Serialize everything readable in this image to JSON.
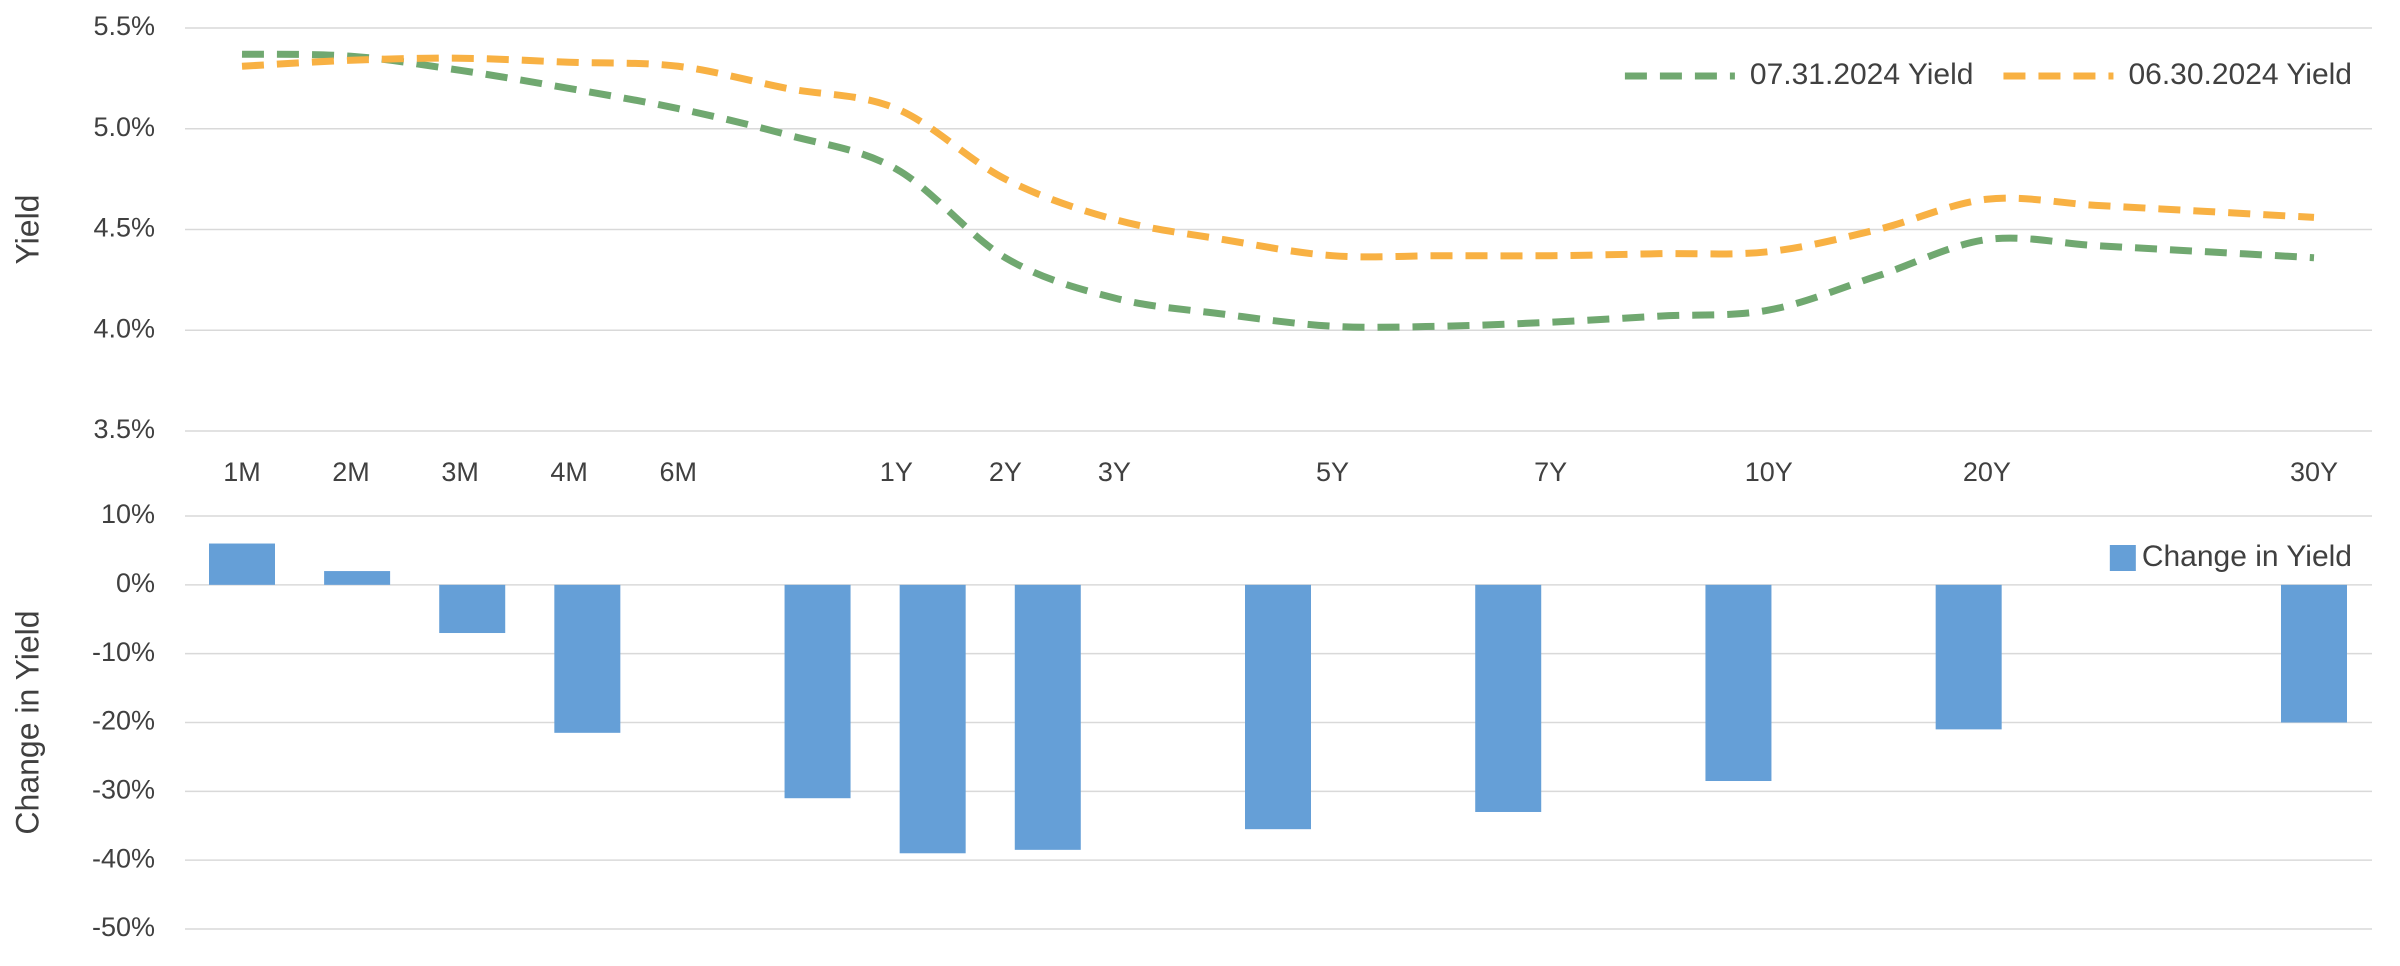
{
  "chart_data": [
    {
      "type": "line",
      "y_label": "Yield",
      "categories": [
        "1M",
        "2M",
        "3M",
        "4M",
        "6M",
        null,
        "1Y",
        "2Y",
        "3Y",
        null,
        "5Y",
        null,
        "7Y",
        null,
        "10Y",
        null,
        "20Y",
        null,
        null,
        "30Y"
      ],
      "series": [
        {
          "name": "07.31.2024 Yield",
          "color": "#70a870",
          "values": [
            5.37,
            5.36,
            5.29,
            5.2,
            5.1,
            4.97,
            4.8,
            4.36,
            4.16,
            4.08,
            4.02,
            4.02,
            4.04,
            4.07,
            4.1,
            4.27,
            4.45,
            4.42,
            4.39,
            4.36
          ]
        },
        {
          "name": "06.30.2024 Yield",
          "color": "#f8b143",
          "values": [
            5.31,
            5.34,
            5.35,
            5.33,
            5.31,
            5.2,
            5.1,
            4.75,
            4.55,
            4.45,
            4.37,
            4.37,
            4.37,
            4.38,
            4.39,
            4.5,
            4.65,
            4.62,
            4.59,
            4.56
          ]
        }
      ],
      "ylim": [
        3.5,
        5.5
      ],
      "yticks": [
        {
          "value": 3.5,
          "label": "3.5%"
        },
        {
          "value": 4.0,
          "label": "4.0%"
        },
        {
          "value": 4.5,
          "label": "4.5%"
        },
        {
          "value": 5.0,
          "label": "5.0%"
        },
        {
          "value": 5.5,
          "label": "5.5%"
        }
      ],
      "grid": true,
      "legend": "top-right"
    },
    {
      "type": "bar",
      "y_label": "Change in Yield",
      "categories": [
        null,
        null,
        null,
        null,
        null,
        null,
        null,
        null,
        null,
        null,
        null,
        null,
        null,
        null,
        null,
        null,
        null,
        null,
        null
      ],
      "series": [
        {
          "name": "Change in Yield",
          "color": "#659fd7",
          "values": [
            6,
            2,
            -7,
            -21.5,
            null,
            -31,
            -39,
            -38.5,
            null,
            -35.5,
            null,
            -33,
            null,
            -28.5,
            null,
            -21,
            null,
            null,
            -20
          ]
        }
      ],
      "ylim": [
        -50,
        10
      ],
      "yticks": [
        {
          "value": -50,
          "label": "-50%"
        },
        {
          "value": -40,
          "label": "-40%"
        },
        {
          "value": -30,
          "label": "-30%"
        },
        {
          "value": -20,
          "label": "-20%"
        },
        {
          "value": -10,
          "label": "-10%"
        },
        {
          "value": 0,
          "label": "0%"
        },
        {
          "value": 10,
          "label": "10%"
        }
      ],
      "grid": true,
      "legend": "top-right"
    }
  ]
}
